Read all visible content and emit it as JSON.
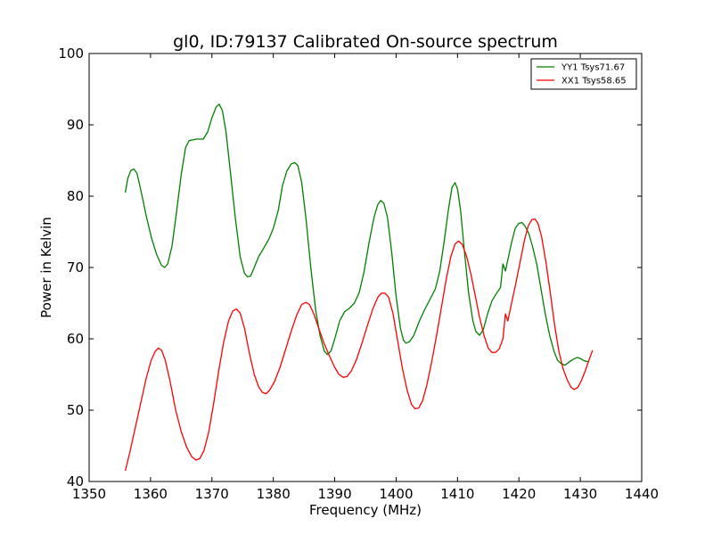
{
  "chart_data": {
    "type": "line",
    "title": "gl0, ID:79137 Calibrated On-source spectrum",
    "xlabel": "Frequency (MHz)",
    "ylabel": "Power in Kelvin",
    "xlim": [
      1350,
      1440
    ],
    "ylim": [
      40,
      100
    ],
    "xticks": [
      1350,
      1360,
      1370,
      1380,
      1390,
      1400,
      1410,
      1420,
      1430,
      1440
    ],
    "yticks": [
      40,
      50,
      60,
      70,
      80,
      90,
      100
    ],
    "grid": false,
    "legend_position": "top-right",
    "series": [
      {
        "name": "YY1 Tsys71.67",
        "color": "#008000",
        "points": [
          [
            1355.9,
            80.5
          ],
          [
            1356.3,
            82.5
          ],
          [
            1356.8,
            83.6
          ],
          [
            1357.3,
            83.8
          ],
          [
            1357.8,
            83.2
          ],
          [
            1358.5,
            80.5
          ],
          [
            1359.3,
            77.2
          ],
          [
            1360.2,
            74.0
          ],
          [
            1361.0,
            71.8
          ],
          [
            1361.8,
            70.3
          ],
          [
            1362.3,
            70.0
          ],
          [
            1362.8,
            70.5
          ],
          [
            1363.5,
            73.0
          ],
          [
            1364.2,
            77.5
          ],
          [
            1365.0,
            83.0
          ],
          [
            1365.7,
            86.8
          ],
          [
            1366.3,
            87.8
          ],
          [
            1367.5,
            88.0
          ],
          [
            1368.6,
            88.0
          ],
          [
            1369.3,
            89.0
          ],
          [
            1370.0,
            91.0
          ],
          [
            1370.7,
            92.5
          ],
          [
            1371.2,
            92.9
          ],
          [
            1371.7,
            92.0
          ],
          [
            1372.3,
            89.0
          ],
          [
            1373.0,
            83.5
          ],
          [
            1373.8,
            77.0
          ],
          [
            1374.6,
            71.5
          ],
          [
            1375.3,
            69.2
          ],
          [
            1375.8,
            68.7
          ],
          [
            1376.3,
            68.8
          ],
          [
            1376.9,
            70.0
          ],
          [
            1377.6,
            71.5
          ],
          [
            1378.5,
            72.8
          ],
          [
            1379.3,
            74.0
          ],
          [
            1380.0,
            75.5
          ],
          [
            1380.8,
            78.0
          ],
          [
            1381.5,
            81.5
          ],
          [
            1382.2,
            83.5
          ],
          [
            1382.9,
            84.5
          ],
          [
            1383.5,
            84.7
          ],
          [
            1384.0,
            84.3
          ],
          [
            1384.6,
            82.0
          ],
          [
            1385.3,
            77.0
          ],
          [
            1386.1,
            70.0
          ],
          [
            1386.9,
            64.0
          ],
          [
            1387.6,
            60.5
          ],
          [
            1388.3,
            58.3
          ],
          [
            1388.8,
            57.8
          ],
          [
            1389.4,
            58.3
          ],
          [
            1390.0,
            60.0
          ],
          [
            1390.8,
            62.5
          ],
          [
            1391.6,
            63.8
          ],
          [
            1392.4,
            64.3
          ],
          [
            1393.2,
            65.0
          ],
          [
            1394.0,
            66.5
          ],
          [
            1394.8,
            69.5
          ],
          [
            1395.6,
            73.5
          ],
          [
            1396.4,
            77.0
          ],
          [
            1397.0,
            78.8
          ],
          [
            1397.5,
            79.4
          ],
          [
            1398.0,
            79.0
          ],
          [
            1398.6,
            77.0
          ],
          [
            1399.3,
            72.0
          ],
          [
            1400.0,
            66.0
          ],
          [
            1400.7,
            61.5
          ],
          [
            1401.2,
            59.8
          ],
          [
            1401.6,
            59.4
          ],
          [
            1402.2,
            59.6
          ],
          [
            1402.9,
            60.5
          ],
          [
            1403.7,
            62.3
          ],
          [
            1404.6,
            64.0
          ],
          [
            1405.5,
            65.5
          ],
          [
            1406.4,
            67.0
          ],
          [
            1407.1,
            69.5
          ],
          [
            1407.8,
            73.5
          ],
          [
            1408.5,
            78.0
          ],
          [
            1409.1,
            81.2
          ],
          [
            1409.6,
            81.9
          ],
          [
            1410.0,
            81.0
          ],
          [
            1410.5,
            78.0
          ],
          [
            1411.1,
            72.5
          ],
          [
            1411.8,
            66.5
          ],
          [
            1412.5,
            62.5
          ],
          [
            1413.0,
            61.0
          ],
          [
            1413.6,
            60.5
          ],
          [
            1414.2,
            61.3
          ],
          [
            1414.9,
            63.5
          ],
          [
            1415.6,
            65.3
          ],
          [
            1416.3,
            66.3
          ],
          [
            1417.0,
            67.2
          ],
          [
            1417.4,
            70.5
          ],
          [
            1417.8,
            69.5
          ],
          [
            1418.3,
            71.5
          ],
          [
            1418.8,
            73.5
          ],
          [
            1419.4,
            75.5
          ],
          [
            1420.0,
            76.2
          ],
          [
            1420.5,
            76.3
          ],
          [
            1421.0,
            75.8
          ],
          [
            1421.6,
            74.8
          ],
          [
            1422.2,
            73.0
          ],
          [
            1422.9,
            70.5
          ],
          [
            1423.6,
            67.0
          ],
          [
            1424.3,
            63.5
          ],
          [
            1425.0,
            60.5
          ],
          [
            1425.7,
            58.3
          ],
          [
            1426.3,
            57.0
          ],
          [
            1426.9,
            56.5
          ],
          [
            1427.5,
            56.3
          ],
          [
            1428.1,
            56.7
          ],
          [
            1428.8,
            57.1
          ],
          [
            1429.5,
            57.4
          ],
          [
            1430.1,
            57.2
          ],
          [
            1430.7,
            56.9
          ],
          [
            1431.3,
            56.8
          ]
        ]
      },
      {
        "name": "XX1 Tsys58.65",
        "color": "#ff0000",
        "points": [
          [
            1355.9,
            41.5
          ],
          [
            1356.6,
            44.0
          ],
          [
            1357.5,
            47.5
          ],
          [
            1358.4,
            51.0
          ],
          [
            1359.3,
            54.5
          ],
          [
            1360.1,
            57.0
          ],
          [
            1360.8,
            58.3
          ],
          [
            1361.3,
            58.7
          ],
          [
            1361.8,
            58.4
          ],
          [
            1362.4,
            57.0
          ],
          [
            1363.2,
            54.0
          ],
          [
            1364.1,
            50.0
          ],
          [
            1365.0,
            47.0
          ],
          [
            1365.9,
            44.8
          ],
          [
            1366.7,
            43.5
          ],
          [
            1367.4,
            43.0
          ],
          [
            1368.0,
            43.2
          ],
          [
            1368.7,
            44.3
          ],
          [
            1369.5,
            47.0
          ],
          [
            1370.3,
            51.0
          ],
          [
            1371.1,
            55.5
          ],
          [
            1371.9,
            59.5
          ],
          [
            1372.7,
            62.5
          ],
          [
            1373.4,
            63.9
          ],
          [
            1374.0,
            64.2
          ],
          [
            1374.6,
            63.6
          ],
          [
            1375.3,
            61.5
          ],
          [
            1376.1,
            58.0
          ],
          [
            1376.9,
            55.0
          ],
          [
            1377.6,
            53.3
          ],
          [
            1378.2,
            52.5
          ],
          [
            1378.8,
            52.3
          ],
          [
            1379.4,
            52.8
          ],
          [
            1380.2,
            54.0
          ],
          [
            1381.1,
            56.0
          ],
          [
            1382.0,
            58.5
          ],
          [
            1382.9,
            61.0
          ],
          [
            1383.8,
            63.3
          ],
          [
            1384.6,
            64.8
          ],
          [
            1385.3,
            65.1
          ],
          [
            1385.9,
            64.8
          ],
          [
            1386.6,
            63.5
          ],
          [
            1387.4,
            61.5
          ],
          [
            1388.3,
            59.3
          ],
          [
            1389.2,
            57.5
          ],
          [
            1390.0,
            56.0
          ],
          [
            1390.7,
            55.0
          ],
          [
            1391.4,
            54.6
          ],
          [
            1392.0,
            54.7
          ],
          [
            1392.7,
            55.5
          ],
          [
            1393.5,
            57.0
          ],
          [
            1394.4,
            59.3
          ],
          [
            1395.3,
            61.8
          ],
          [
            1396.2,
            64.2
          ],
          [
            1397.0,
            65.8
          ],
          [
            1397.6,
            66.4
          ],
          [
            1398.2,
            66.4
          ],
          [
            1398.8,
            65.8
          ],
          [
            1399.5,
            63.5
          ],
          [
            1400.2,
            60.0
          ],
          [
            1401.0,
            56.0
          ],
          [
            1401.8,
            52.8
          ],
          [
            1402.5,
            50.8
          ],
          [
            1403.1,
            50.2
          ],
          [
            1403.7,
            50.3
          ],
          [
            1404.3,
            51.3
          ],
          [
            1405.0,
            53.5
          ],
          [
            1405.8,
            56.8
          ],
          [
            1406.6,
            60.5
          ],
          [
            1407.4,
            64.5
          ],
          [
            1408.2,
            68.5
          ],
          [
            1408.9,
            71.5
          ],
          [
            1409.6,
            73.3
          ],
          [
            1410.2,
            73.7
          ],
          [
            1410.8,
            73.2
          ],
          [
            1411.5,
            71.5
          ],
          [
            1412.2,
            69.0
          ],
          [
            1412.9,
            66.0
          ],
          [
            1413.6,
            63.0
          ],
          [
            1414.3,
            60.5
          ],
          [
            1415.0,
            58.7
          ],
          [
            1415.6,
            58.1
          ],
          [
            1416.2,
            58.1
          ],
          [
            1416.8,
            58.6
          ],
          [
            1417.4,
            60.0
          ],
          [
            1417.8,
            63.5
          ],
          [
            1418.2,
            62.5
          ],
          [
            1418.8,
            65.0
          ],
          [
            1419.5,
            67.8
          ],
          [
            1420.2,
            70.8
          ],
          [
            1420.9,
            73.8
          ],
          [
            1421.5,
            75.8
          ],
          [
            1422.1,
            76.7
          ],
          [
            1422.6,
            76.8
          ],
          [
            1423.1,
            76.2
          ],
          [
            1423.7,
            74.3
          ],
          [
            1424.4,
            70.8
          ],
          [
            1425.1,
            66.5
          ],
          [
            1425.8,
            62.0
          ],
          [
            1426.5,
            58.3
          ],
          [
            1427.2,
            55.8
          ],
          [
            1427.9,
            54.2
          ],
          [
            1428.5,
            53.2
          ],
          [
            1429.0,
            52.9
          ],
          [
            1429.6,
            53.2
          ],
          [
            1430.2,
            54.2
          ],
          [
            1430.8,
            55.5
          ],
          [
            1431.4,
            57.0
          ],
          [
            1432.0,
            58.4
          ]
        ]
      }
    ]
  }
}
